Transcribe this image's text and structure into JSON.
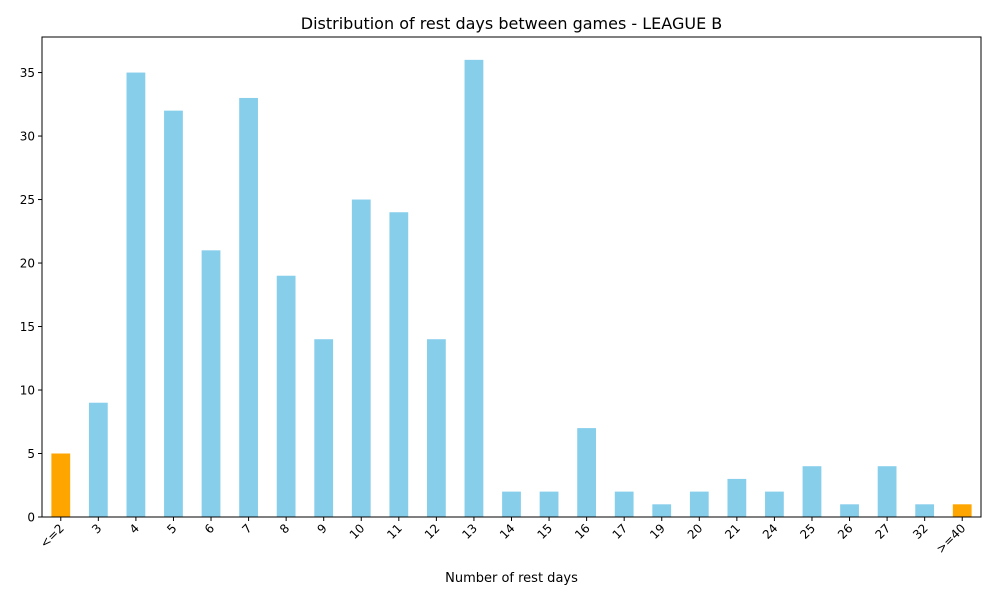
{
  "chart_data": {
    "type": "bar",
    "title": "Distribution of rest days between games - LEAGUE B",
    "xlabel": "Number of rest days",
    "ylabel": "",
    "categories": [
      "<=2",
      "3",
      "4",
      "5",
      "6",
      "7",
      "8",
      "9",
      "10",
      "11",
      "12",
      "13",
      "14",
      "15",
      "16",
      "17",
      "19",
      "20",
      "21",
      "24",
      "25",
      "26",
      "27",
      "32",
      ">=40"
    ],
    "values": [
      5,
      9,
      35,
      32,
      21,
      33,
      19,
      14,
      25,
      24,
      14,
      36,
      2,
      2,
      7,
      2,
      1,
      2,
      3,
      2,
      4,
      1,
      4,
      1,
      1
    ],
    "ylim": [
      0,
      37.8
    ],
    "yticks": [
      0,
      5,
      10,
      15,
      20,
      25,
      30,
      35
    ],
    "grid": false,
    "bar_color": "#87CEEB",
    "highlight_color": "#FFA500",
    "highlighted_categories": [
      "<=2",
      ">=40"
    ]
  }
}
